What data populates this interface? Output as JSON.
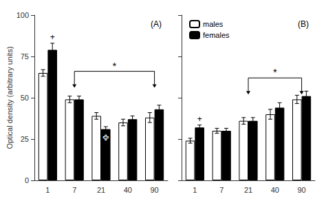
{
  "chart_data": [
    {
      "type": "bar",
      "title": "(A)",
      "categories": [
        1,
        7,
        21,
        40,
        90
      ],
      "series": [
        {
          "name": "males",
          "color": "white",
          "values": [
            65,
            49,
            39,
            35,
            38
          ],
          "errors": [
            2,
            2,
            2,
            2,
            3
          ]
        },
        {
          "name": "females",
          "color": "black",
          "values": [
            79,
            49,
            31,
            37,
            43
          ],
          "errors": [
            4,
            2,
            1.5,
            2,
            2.5
          ]
        }
      ],
      "ylabel": "Optical density (arbitrary units)",
      "ylim": [
        0,
        100
      ],
      "yticks": [
        0,
        25,
        50,
        75,
        100
      ],
      "grid": false,
      "annotations": [
        {
          "text": "+",
          "category": 1,
          "series": "females",
          "position": "above"
        },
        {
          "text": "+",
          "category": 21,
          "series": "females",
          "position": "below"
        },
        {
          "text": "*",
          "from": 7,
          "to": 90,
          "y": 66,
          "arrow_to": 56
        }
      ]
    },
    {
      "type": "bar",
      "title": "(B)",
      "categories": [
        1,
        7,
        21,
        40,
        90
      ],
      "series": [
        {
          "name": "males",
          "color": "white",
          "values": [
            24,
            30,
            36,
            40,
            49
          ],
          "errors": [
            1.5,
            1.5,
            2,
            3,
            2.5
          ]
        },
        {
          "name": "females",
          "color": "black",
          "values": [
            32,
            30,
            36,
            44,
            51
          ],
          "errors": [
            1.5,
            1.5,
            2,
            3,
            3
          ]
        }
      ],
      "ylim": [
        0,
        100
      ],
      "yticks": [
        0,
        25,
        50,
        75,
        100
      ],
      "grid": false,
      "tick_labels": "x",
      "legend": "upper left",
      "annotations": [
        {
          "text": "+",
          "category": 1,
          "series": "females",
          "position": "above"
        },
        {
          "text": "*",
          "from": 21,
          "to": 90,
          "y": 62,
          "arrow_to": 52
        }
      ]
    }
  ]
}
